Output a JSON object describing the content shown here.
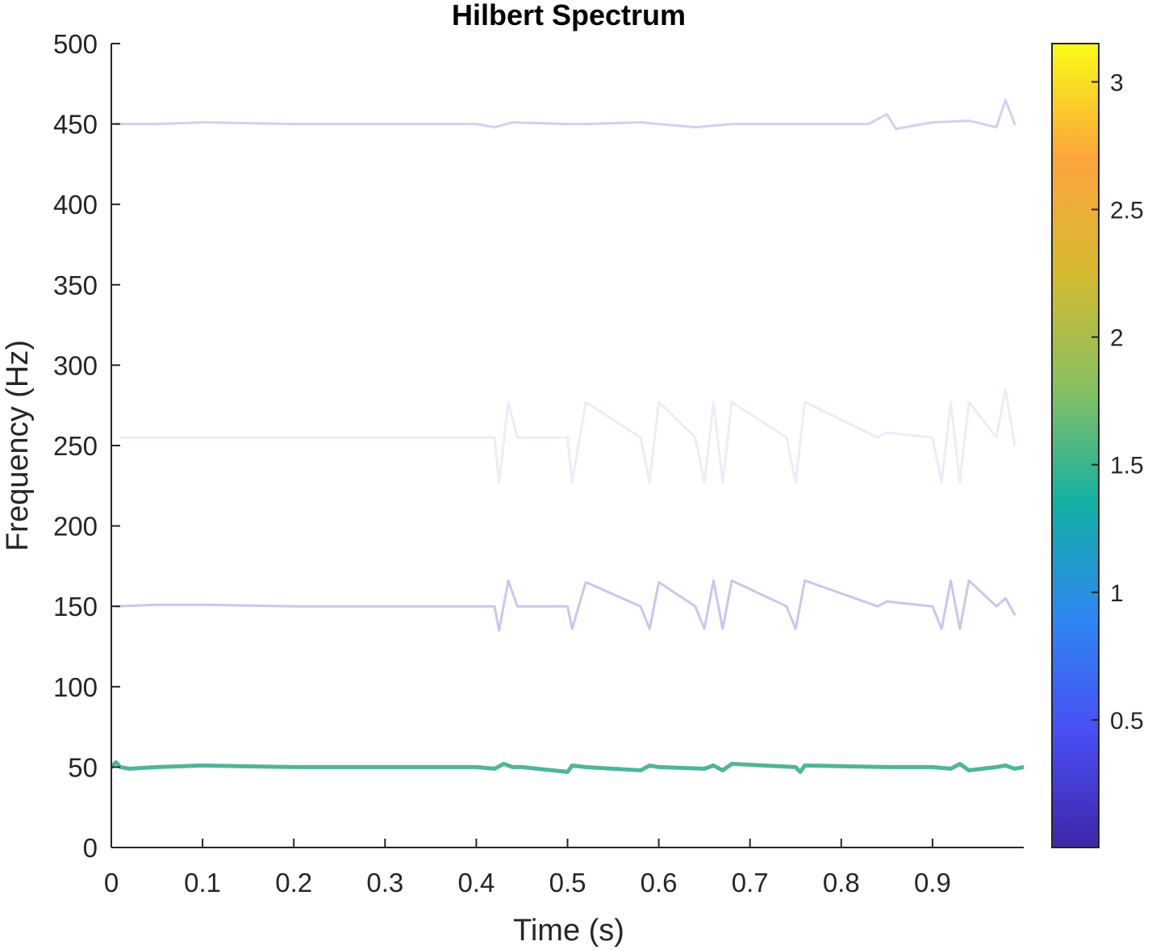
{
  "chart_data": {
    "type": "line",
    "title": "Hilbert Spectrum",
    "xlabel": "Time (s)",
    "ylabel": "Frequency (Hz)",
    "xlim": [
      0,
      1
    ],
    "ylim": [
      0,
      500
    ],
    "xticks": [
      0,
      0.1,
      0.2,
      0.3,
      0.4,
      0.5,
      0.6,
      0.7,
      0.8,
      0.9
    ],
    "xtick_labels": [
      "0",
      "0.1",
      "0.2",
      "0.3",
      "0.4",
      "0.5",
      "0.6",
      "0.7",
      "0.8",
      "0.9"
    ],
    "yticks": [
      0,
      50,
      100,
      150,
      200,
      250,
      300,
      350,
      400,
      450,
      500
    ],
    "ytick_labels": [
      "0",
      "50",
      "100",
      "150",
      "200",
      "250",
      "300",
      "350",
      "400",
      "450",
      "500"
    ],
    "grid": false,
    "colormap": "parula",
    "colorbar": {
      "range": [
        0,
        3.15
      ],
      "ticks": [
        0.5,
        1,
        1.5,
        2,
        2.5,
        3
      ],
      "tick_labels": [
        "0.5",
        "1",
        "1.5",
        "2",
        "2.5",
        "3"
      ],
      "colors": [
        "#3e26a8",
        "#4a4ef5",
        "#2e87f2",
        "#12b1a4",
        "#88c061",
        "#d5ba30",
        "#fca43c",
        "#f9fb15"
      ]
    },
    "series": [
      {
        "center_frequency": 50,
        "amplitude_level": 1.75,
        "color": "#4fb59a",
        "x": [
          0.0,
          0.005,
          0.01,
          0.02,
          0.05,
          0.1,
          0.2,
          0.3,
          0.4,
          0.42,
          0.43,
          0.44,
          0.45,
          0.5,
          0.505,
          0.52,
          0.58,
          0.59,
          0.6,
          0.65,
          0.66,
          0.67,
          0.68,
          0.75,
          0.755,
          0.76,
          0.85,
          0.9,
          0.92,
          0.93,
          0.94,
          0.97,
          0.98,
          0.99,
          1.0
        ],
        "y": [
          50,
          53,
          50,
          49,
          50,
          51,
          50,
          50,
          50,
          49,
          52,
          50,
          50,
          47,
          51,
          50,
          48,
          51,
          50,
          49,
          51,
          48,
          52,
          50,
          47,
          51,
          50,
          50,
          49,
          52,
          48,
          50,
          51,
          49,
          50
        ]
      },
      {
        "center_frequency": 150,
        "amplitude_level": 0.35,
        "color": "#c7c7f2",
        "x": [
          0.005,
          0.05,
          0.1,
          0.2,
          0.3,
          0.4,
          0.42,
          0.425,
          0.435,
          0.445,
          0.5,
          0.505,
          0.52,
          0.58,
          0.59,
          0.6,
          0.64,
          0.65,
          0.66,
          0.67,
          0.68,
          0.74,
          0.75,
          0.76,
          0.84,
          0.85,
          0.9,
          0.91,
          0.92,
          0.93,
          0.94,
          0.97,
          0.98,
          0.99
        ],
        "y": [
          150,
          151,
          151,
          150,
          150,
          150,
          150,
          135,
          166,
          150,
          150,
          136,
          165,
          150,
          136,
          165,
          150,
          136,
          166,
          136,
          166,
          150,
          136,
          166,
          150,
          153,
          150,
          136,
          166,
          136,
          166,
          150,
          155,
          145
        ]
      },
      {
        "center_frequency": 250,
        "amplitude_level": 0.15,
        "color": "#ececfa",
        "x": [
          0.01,
          0.1,
          0.2,
          0.3,
          0.4,
          0.42,
          0.425,
          0.435,
          0.445,
          0.5,
          0.505,
          0.52,
          0.58,
          0.59,
          0.6,
          0.64,
          0.65,
          0.66,
          0.67,
          0.68,
          0.74,
          0.75,
          0.76,
          0.84,
          0.85,
          0.9,
          0.91,
          0.92,
          0.93,
          0.94,
          0.97,
          0.98,
          0.99
        ],
        "y": [
          255,
          255,
          255,
          255,
          255,
          255,
          227,
          277,
          255,
          255,
          227,
          277,
          255,
          227,
          277,
          255,
          227,
          277,
          227,
          277,
          255,
          227,
          277,
          255,
          258,
          255,
          227,
          277,
          227,
          277,
          255,
          285,
          250
        ]
      },
      {
        "center_frequency": 450,
        "amplitude_level": 0.3,
        "color": "#d0d0f5",
        "x": [
          0.005,
          0.05,
          0.1,
          0.2,
          0.3,
          0.4,
          0.42,
          0.44,
          0.5,
          0.52,
          0.58,
          0.6,
          0.64,
          0.68,
          0.74,
          0.77,
          0.83,
          0.85,
          0.86,
          0.9,
          0.94,
          0.97,
          0.98,
          0.99
        ],
        "y": [
          450,
          450,
          451,
          450,
          450,
          450,
          448,
          451,
          450,
          450,
          451,
          450,
          448,
          450,
          450,
          450,
          450,
          456,
          447,
          451,
          452,
          448,
          465,
          450
        ]
      }
    ]
  }
}
